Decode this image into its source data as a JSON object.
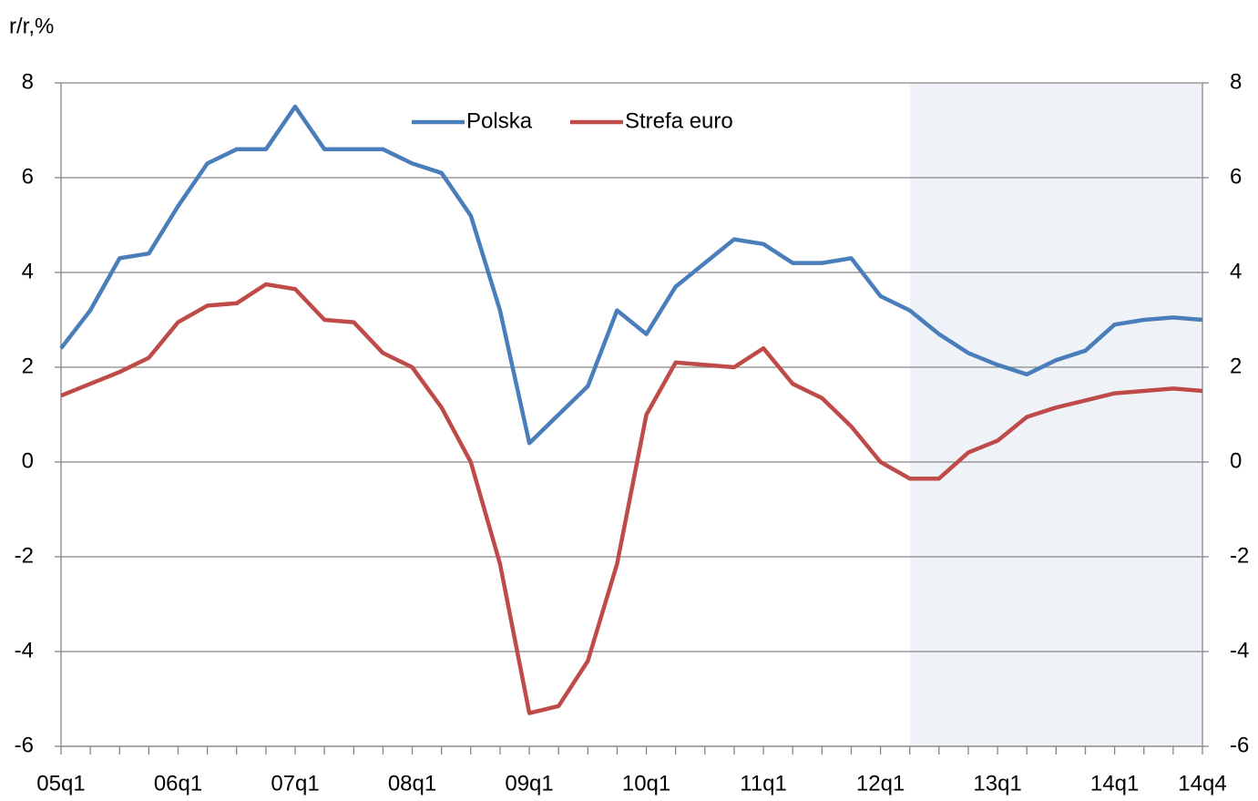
{
  "chart_data": {
    "type": "line",
    "y_label": "r/r,%",
    "categories": [
      "05q1",
      null,
      null,
      null,
      "06q1",
      null,
      null,
      null,
      "07q1",
      null,
      null,
      null,
      "08q1",
      null,
      null,
      null,
      "09q1",
      null,
      null,
      null,
      "10q1",
      null,
      null,
      null,
      "11q1",
      null,
      null,
      null,
      "12q1",
      null,
      null,
      null,
      "13q1",
      null,
      null,
      null,
      "14q1",
      null,
      null,
      "14q4"
    ],
    "series": [
      {
        "name": "Polska",
        "color": "#4a7ebb",
        "values": [
          2.4,
          3.2,
          4.3,
          4.4,
          5.4,
          6.3,
          6.6,
          6.6,
          7.5,
          6.6,
          6.6,
          6.6,
          6.3,
          6.1,
          5.2,
          3.2,
          0.4,
          1.0,
          1.6,
          3.2,
          2.7,
          3.7,
          4.2,
          4.7,
          4.6,
          4.2,
          4.2,
          4.3,
          3.5,
          3.2,
          2.7,
          2.3,
          2.05,
          1.85,
          2.15,
          2.35,
          2.9,
          3.0,
          3.05,
          3.0
        ]
      },
      {
        "name": "Strefa euro",
        "color": "#be4b48",
        "values": [
          1.4,
          1.65,
          1.9,
          2.2,
          2.95,
          3.3,
          3.35,
          3.75,
          3.65,
          3.0,
          2.95,
          2.3,
          2.0,
          1.15,
          0.0,
          -2.15,
          -5.3,
          -5.15,
          -4.2,
          -2.15,
          1.0,
          2.1,
          2.05,
          2.0,
          2.4,
          1.65,
          1.35,
          0.75,
          0.0,
          -0.35,
          -0.35,
          0.2,
          0.45,
          0.95,
          1.15,
          1.3,
          1.45,
          1.5,
          1.55,
          1.5
        ]
      }
    ],
    "ylim": [
      -6,
      8
    ],
    "yticks": [
      -6,
      -4,
      -2,
      0,
      2,
      4,
      6,
      8
    ],
    "y2lim": [
      -6,
      8
    ],
    "y2ticks": [
      -6,
      -4,
      -2,
      0,
      2,
      4,
      6,
      8
    ],
    "grid": true,
    "legend": "top"
  }
}
